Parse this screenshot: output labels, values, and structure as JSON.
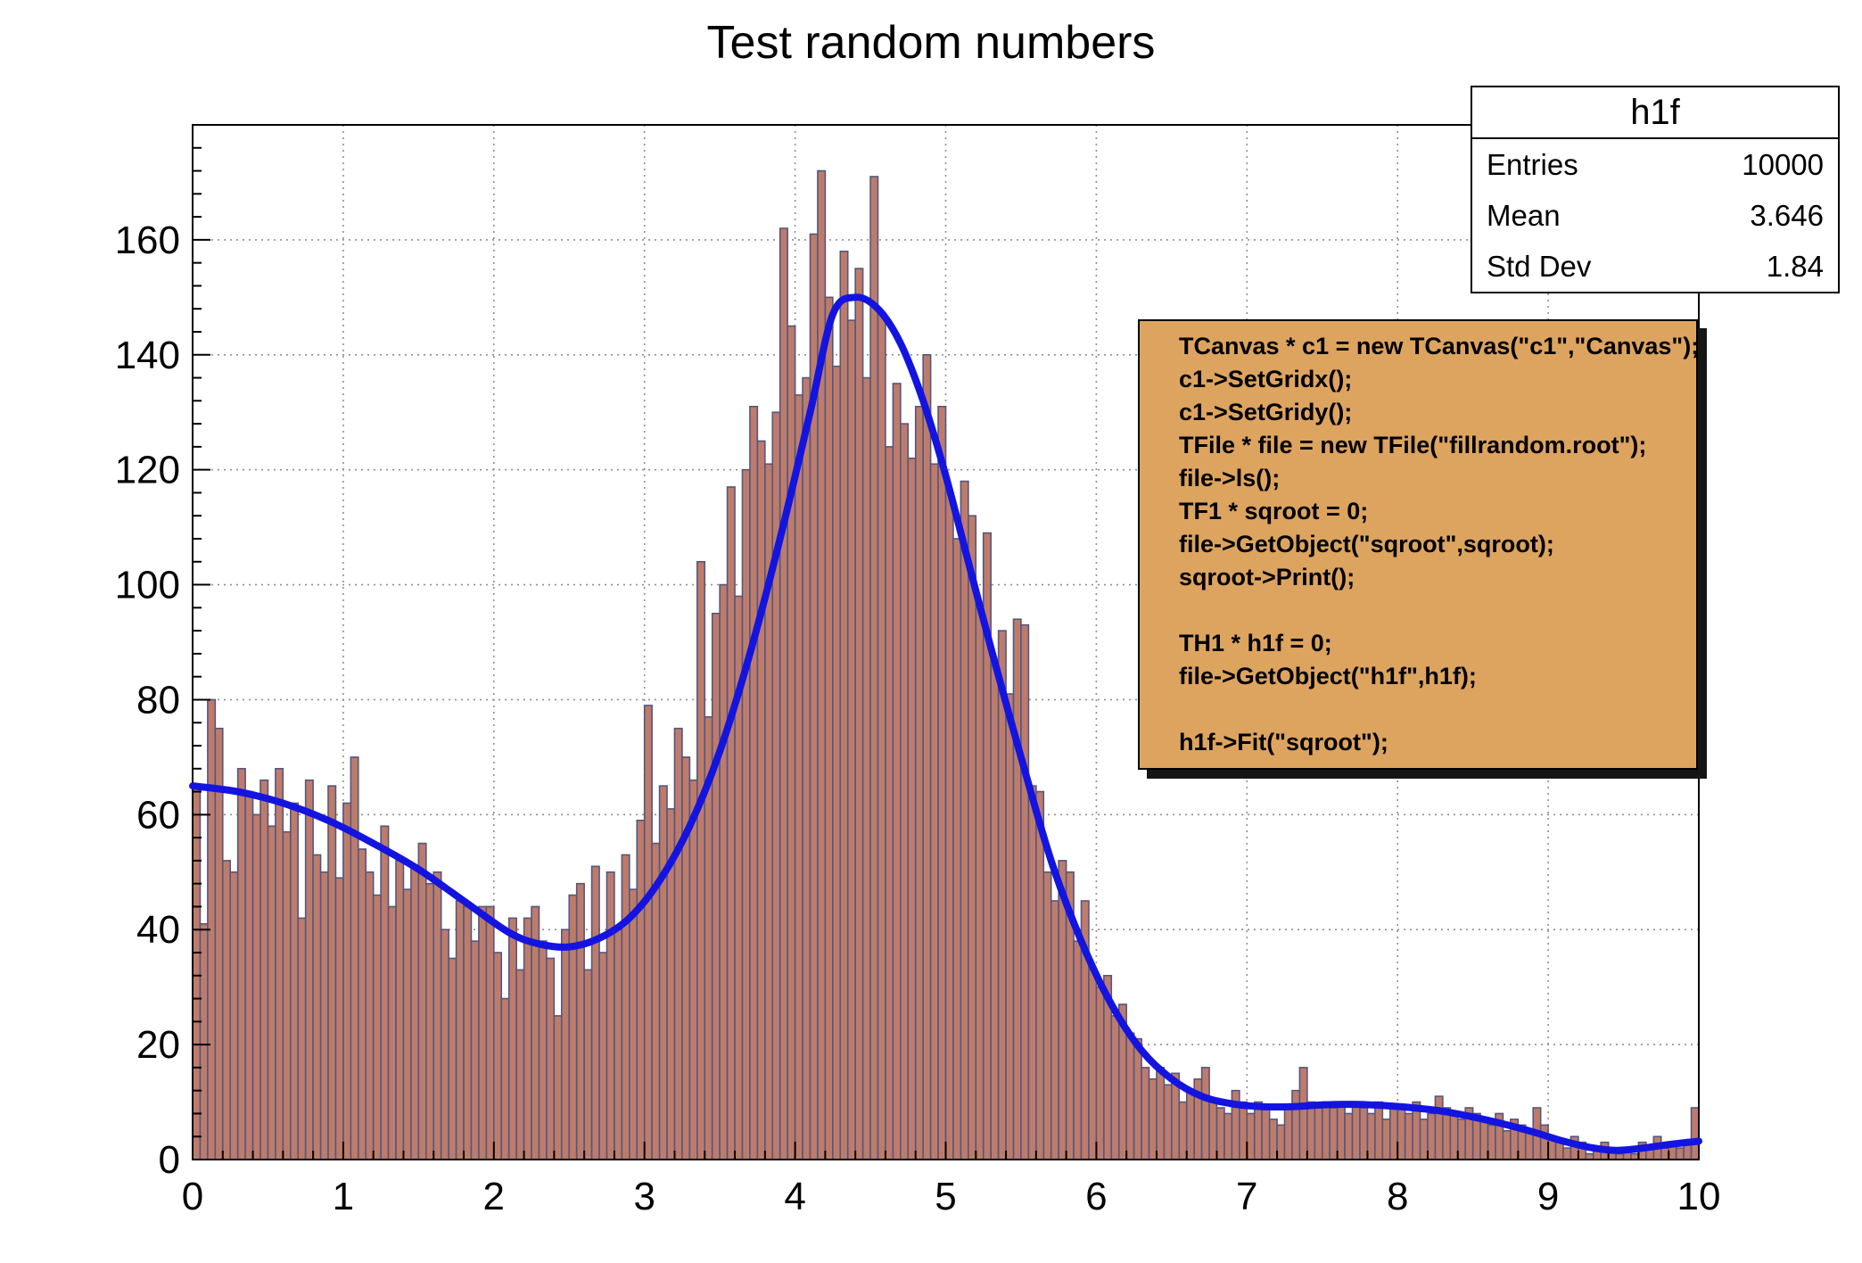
{
  "title": "Test random numbers",
  "stats": {
    "title": "h1f",
    "rows": [
      {
        "label": "Entries",
        "value": "10000"
      },
      {
        "label": "Mean",
        "value": "3.646"
      },
      {
        "label": "Std Dev",
        "value": "1.84"
      }
    ]
  },
  "code_box": {
    "lines": [
      "TCanvas * c1 = new TCanvas(\"c1\",\"Canvas\");",
      "c1->SetGridx();",
      "c1->SetGridy();",
      "TFile * file = new TFile(\"fillrandom.root\");",
      "file->ls();",
      "TF1 * sqroot = 0;",
      "file->GetObject(\"sqroot\",sqroot);",
      "sqroot->Print();",
      "",
      "TH1 * h1f = 0;",
      "file->GetObject(\"h1f\",h1f);",
      "",
      "h1f->Fit(\"sqroot\");"
    ]
  },
  "chart_data": {
    "type": "bar",
    "title": "Test random numbers",
    "histogram_name": "h1f",
    "entries": 10000,
    "mean": 3.646,
    "std_dev": 1.84,
    "x_axis": {
      "min": 0,
      "max": 10,
      "major_step": 1,
      "minor_step": 0.2,
      "tick_labels": [
        "0",
        "1",
        "2",
        "3",
        "4",
        "5",
        "6",
        "7",
        "8",
        "9",
        "10"
      ]
    },
    "y_axis": {
      "min": 0,
      "max": 180,
      "major_step": 20,
      "minor_step": 4,
      "tick_labels": [
        "0",
        "20",
        "40",
        "60",
        "80",
        "100",
        "120",
        "140",
        "160"
      ]
    },
    "grid": true,
    "legend_position": "none",
    "bins": 200,
    "bin_width": 0.05,
    "values": [
      65,
      41,
      80,
      75,
      52,
      50,
      68,
      64,
      60,
      66,
      58,
      68,
      57,
      62,
      42,
      66,
      53,
      50,
      65,
      49,
      62,
      70,
      54,
      50,
      46,
      58,
      44,
      52,
      47,
      51,
      55,
      48,
      50,
      40,
      35,
      45,
      44,
      38,
      44,
      44,
      36,
      28,
      42,
      33,
      42,
      44,
      38,
      35,
      25,
      40,
      46,
      48,
      33,
      51,
      36,
      50,
      40,
      53,
      47,
      59,
      79,
      55,
      65,
      61,
      75,
      70,
      66,
      104,
      77,
      95,
      100,
      117,
      98,
      120,
      131,
      125,
      121,
      130,
      162,
      145,
      133,
      136,
      161,
      172,
      150,
      138,
      158,
      146,
      155,
      136,
      171,
      147,
      124,
      135,
      128,
      122,
      131,
      140,
      121,
      131,
      116,
      108,
      118,
      112,
      96,
      109,
      86,
      92,
      81,
      94,
      93,
      65,
      64,
      50,
      45,
      52,
      50,
      38,
      45,
      33,
      30,
      32,
      25,
      27,
      22,
      21,
      16,
      14,
      16,
      13,
      15,
      10,
      12,
      14,
      16,
      10,
      9,
      8,
      12,
      10,
      8,
      10,
      9,
      7,
      6,
      9,
      12,
      16,
      10,
      9,
      10,
      9,
      10,
      8,
      10,
      9,
      8,
      10,
      7,
      9,
      9,
      8,
      10,
      7,
      8,
      11,
      9,
      8,
      7,
      9,
      8,
      7,
      6,
      8,
      5,
      7,
      6,
      5,
      9,
      6,
      4,
      3,
      2,
      4,
      3,
      1,
      2,
      3,
      2,
      1,
      2,
      1,
      3,
      2,
      4,
      2,
      3,
      2,
      3,
      9
    ],
    "fit_curve": {
      "name": "sqroot",
      "points": [
        [
          0,
          65
        ],
        [
          0.3,
          64
        ],
        [
          0.6,
          62
        ],
        [
          0.9,
          59
        ],
        [
          1.2,
          55
        ],
        [
          1.5,
          50.5
        ],
        [
          1.8,
          45
        ],
        [
          2.1,
          39.5
        ],
        [
          2.3,
          37.5
        ],
        [
          2.5,
          37
        ],
        [
          2.7,
          38.5
        ],
        [
          2.9,
          42
        ],
        [
          3.1,
          48.5
        ],
        [
          3.3,
          58
        ],
        [
          3.5,
          71
        ],
        [
          3.7,
          88
        ],
        [
          3.9,
          108
        ],
        [
          4.1,
          130
        ],
        [
          4.25,
          147
        ],
        [
          4.4,
          150
        ],
        [
          4.55,
          148
        ],
        [
          4.7,
          142
        ],
        [
          4.85,
          132
        ],
        [
          5.0,
          119
        ],
        [
          5.15,
          104
        ],
        [
          5.3,
          89
        ],
        [
          5.5,
          70
        ],
        [
          5.7,
          52
        ],
        [
          5.9,
          38
        ],
        [
          6.1,
          27
        ],
        [
          6.3,
          19
        ],
        [
          6.5,
          14
        ],
        [
          6.7,
          11
        ],
        [
          6.9,
          9.7
        ],
        [
          7.1,
          9.2
        ],
        [
          7.3,
          9.2
        ],
        [
          7.5,
          9.5
        ],
        [
          7.7,
          9.6
        ],
        [
          7.9,
          9.4
        ],
        [
          8.1,
          9.0
        ],
        [
          8.3,
          8.4
        ],
        [
          8.5,
          7.4
        ],
        [
          8.7,
          6.2
        ],
        [
          8.9,
          4.8
        ],
        [
          9.1,
          3.2
        ],
        [
          9.3,
          2.0
        ],
        [
          9.45,
          1.6
        ],
        [
          9.6,
          1.9
        ],
        [
          9.8,
          2.6
        ],
        [
          10,
          3.2
        ]
      ]
    },
    "colors": {
      "bar_fill": "#bd7c6b",
      "bar_stroke": "#56567d",
      "curve": "#1414e0",
      "grid": "#8f8f8f",
      "frame": "#000000",
      "pave_bg": "#dda45f"
    }
  }
}
